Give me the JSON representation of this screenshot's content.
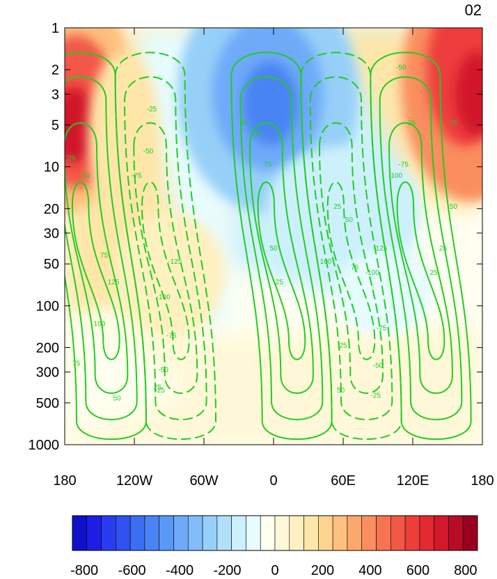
{
  "panel_label": "02",
  "chart_data": {
    "type": "heatmap",
    "title": "",
    "xlabel": "",
    "ylabel": "",
    "x_ticks": [
      "180",
      "120W",
      "60W",
      "0",
      "60E",
      "120E",
      "180"
    ],
    "y_ticks": [
      "1",
      "2",
      "3",
      "5",
      "10",
      "20",
      "30",
      "50",
      "100",
      "200",
      "300",
      "500",
      "1000"
    ],
    "y_scale": "log",
    "y_reversed": true,
    "xlim": [
      -180,
      180
    ],
    "ylim": [
      1000,
      1
    ],
    "colorbar": {
      "min": -850,
      "max": 850,
      "step": 50,
      "tick_labels": [
        "-800",
        "-600",
        "-400",
        "-200",
        "0",
        "200",
        "400",
        "600",
        "800"
      ],
      "colors": [
        "#1010c8",
        "#1e1ee8",
        "#2a3cf0",
        "#3050f0",
        "#3c6ef4",
        "#4a84f4",
        "#5a98f6",
        "#6eaaf8",
        "#82bcf8",
        "#96d0f8",
        "#b0e0fa",
        "#ccf0fc",
        "#e6fcff",
        "#fffff0",
        "#fff8d8",
        "#fff0c0",
        "#fee6a8",
        "#fed490",
        "#fec07e",
        "#fca86c",
        "#fa8e5e",
        "#f67452",
        "#f25846",
        "#ee3e3c",
        "#e42a30",
        "#d2182a",
        "#b80c26",
        "#9a0020"
      ]
    },
    "contour_lines": {
      "color": "#22cc22",
      "labels": [
        "25",
        "50",
        "75",
        "100",
        "125",
        "-25",
        "-50",
        "-75",
        "-100",
        "-125"
      ]
    },
    "fill_features": [
      {
        "name": "positive max west",
        "lon": -165,
        "p": 5,
        "value": 650
      },
      {
        "name": "positive max east",
        "lon": 160,
        "p": 2,
        "value": 650
      },
      {
        "name": "negative min center",
        "lon": -5,
        "p": 3,
        "value": -480
      },
      {
        "name": "positive band lower",
        "lon": -100,
        "p": 50,
        "value": 150
      },
      {
        "name": "negative band lower",
        "lon": 60,
        "p": 50,
        "value": -150
      }
    ]
  }
}
